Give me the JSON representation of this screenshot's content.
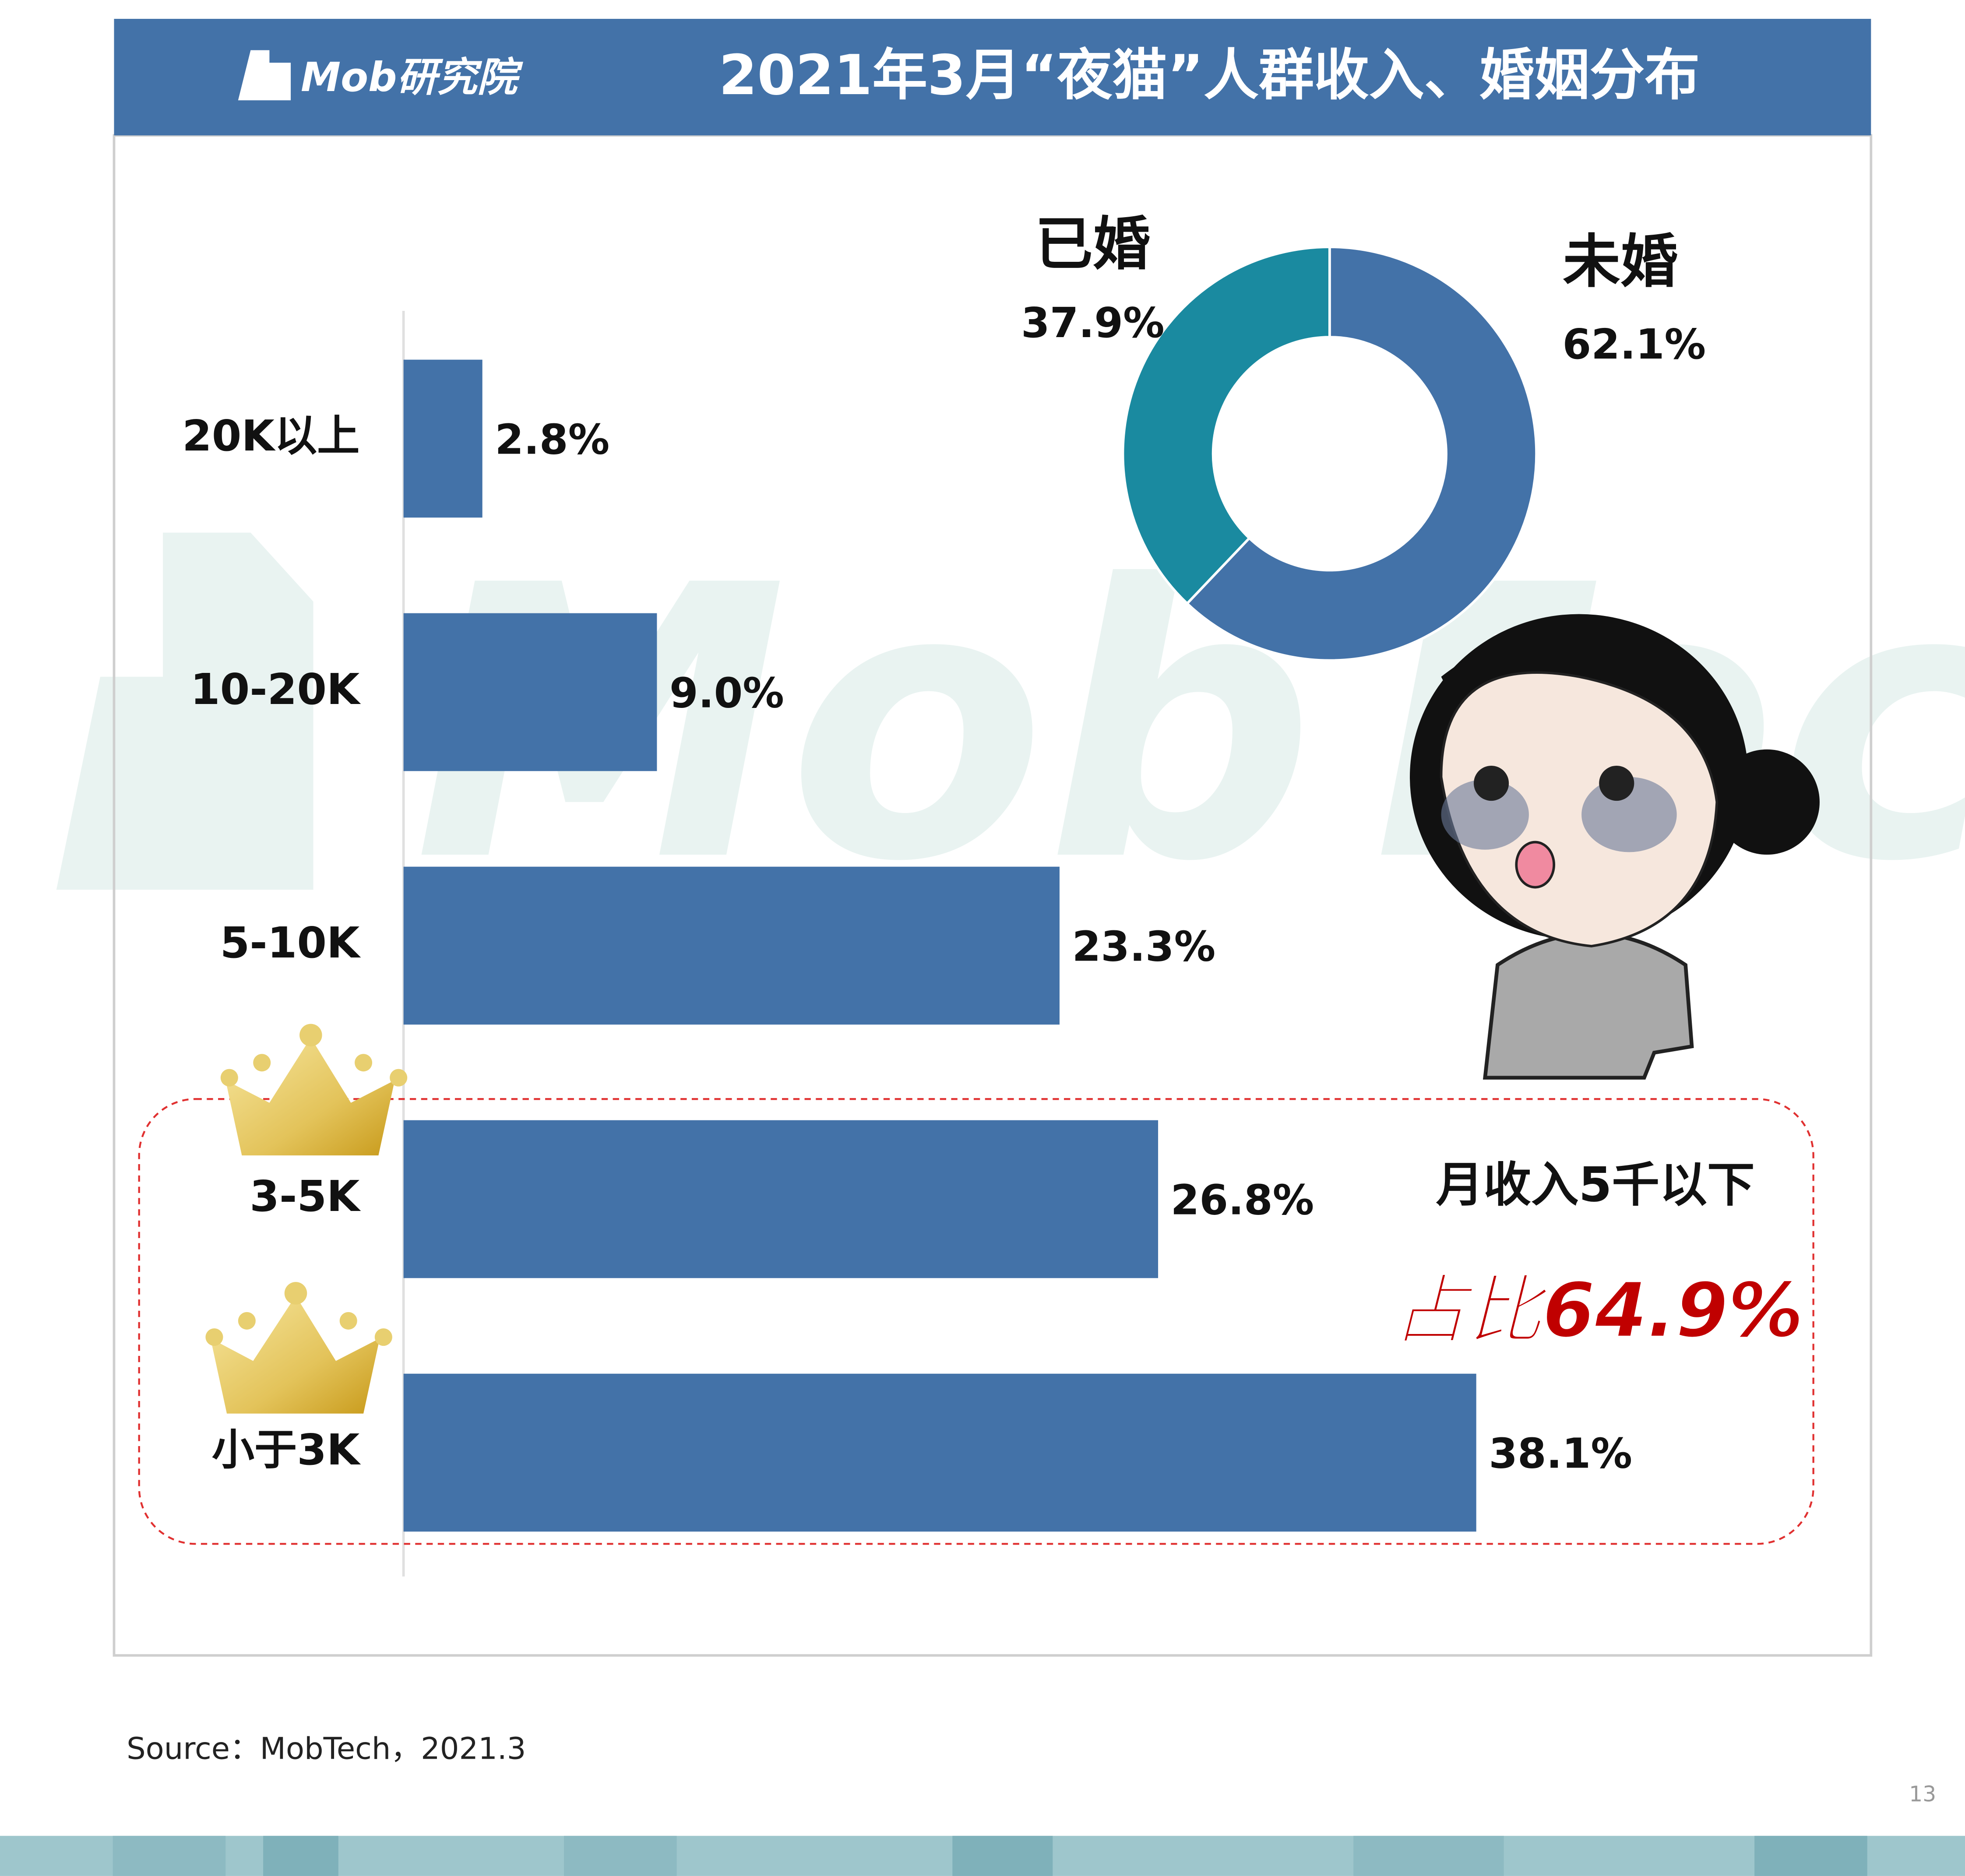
{
  "header": {
    "logo": "Mob研究院",
    "title": "2021年3月“夜猫”人群收入、婚姻分布"
  },
  "watermark": "MobTech",
  "chart_data": [
    {
      "type": "bar",
      "orientation": "horizontal",
      "color": "#4372a8",
      "categories": [
        "20K以上",
        "10-20K",
        "5-10K",
        "3-5K",
        "小于3K"
      ],
      "values": [
        2.8,
        9.0,
        23.3,
        26.8,
        38.1
      ],
      "value_labels": [
        "2.8%",
        "9.0%",
        "23.3%",
        "26.8%",
        "38.1%"
      ]
    },
    {
      "type": "pie",
      "donut": true,
      "categories": [
        "未婚",
        "已婚"
      ],
      "values": [
        62.1,
        37.9
      ],
      "value_labels": [
        "62.1%",
        "37.9%"
      ],
      "colors": [
        "#4372a8",
        "#1a8aa0"
      ]
    }
  ],
  "annotations": {
    "note": "月收入5千以下",
    "highlight": "占比64.9%"
  },
  "footer": {
    "source": "Source：MobTech，2021.3",
    "page": 13
  }
}
